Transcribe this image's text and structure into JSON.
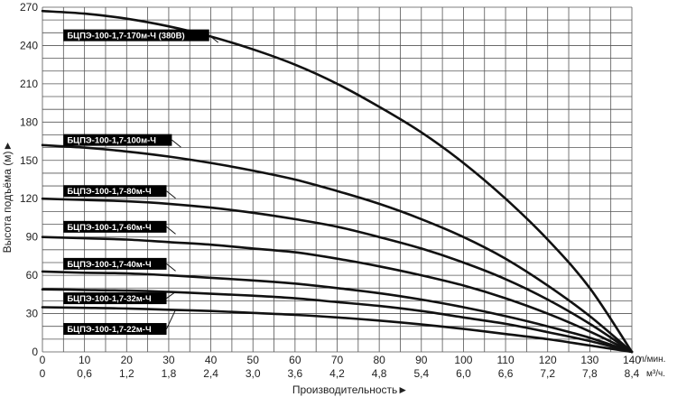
{
  "chart_data": {
    "type": "line",
    "title": "",
    "ylabel": "Высота подъёма (м)",
    "ylabel_arrow": "►",
    "xlabel": "Производительность",
    "xlabel_arrow": "►",
    "x_unit_primary": "л/мин.",
    "x_unit_secondary": "м³/ч.",
    "xlim": [
      0,
      140
    ],
    "ylim": [
      0,
      270
    ],
    "grid": true,
    "x_ticks_lpm": [
      "0",
      "10",
      "20",
      "30",
      "40",
      "50",
      "60",
      "70",
      "80",
      "90",
      "100",
      "110",
      "120",
      "130",
      "140"
    ],
    "x_ticks_m3h": [
      "0",
      "0,6",
      "1,2",
      "1,8",
      "2,4",
      "3,0",
      "3,6",
      "4,2",
      "4,8",
      "5,4",
      "6,0",
      "6,6",
      "7,2",
      "7,8",
      "8,4"
    ],
    "y_ticks": [
      "0",
      "30",
      "60",
      "90",
      "120",
      "150",
      "180",
      "210",
      "240",
      "270"
    ],
    "series": [
      {
        "name": "БЦПЭ-100-1,7-170м-Ч (380В)",
        "label_x": 5,
        "label_y": 248,
        "x": [
          0,
          10,
          20,
          30,
          40,
          50,
          60,
          70,
          80,
          90,
          100,
          110,
          120,
          130,
          140
        ],
        "y": [
          267,
          265,
          261,
          255,
          247,
          237,
          225,
          210,
          192,
          172,
          148,
          120,
          88,
          50,
          0
        ]
      },
      {
        "name": "БЦПЭ-100-1,7-100м-Ч",
        "label_x": 5,
        "label_y": 166,
        "x": [
          0,
          10,
          20,
          30,
          40,
          50,
          60,
          70,
          80,
          90,
          100,
          110,
          120,
          130,
          140
        ],
        "y": [
          162,
          160,
          157,
          153,
          148,
          142,
          135,
          126,
          116,
          104,
          90,
          73,
          52,
          28,
          0
        ]
      },
      {
        "name": "БЦПЭ-100-1,7-80м-Ч",
        "label_x": 5,
        "label_y": 126,
        "x": [
          0,
          10,
          20,
          30,
          40,
          50,
          60,
          70,
          80,
          90,
          100,
          110,
          120,
          130,
          140
        ],
        "y": [
          120,
          119,
          118,
          116,
          113,
          109,
          104,
          98,
          90,
          81,
          70,
          57,
          41,
          22,
          0
        ]
      },
      {
        "name": "БЦПЭ-100-1,7-60м-Ч",
        "label_x": 5,
        "label_y": 98,
        "x": [
          0,
          10,
          20,
          30,
          40,
          50,
          60,
          70,
          80,
          90,
          100,
          110,
          120,
          130,
          140
        ],
        "y": [
          90,
          89,
          88,
          86,
          84,
          81,
          78,
          73,
          67,
          60,
          52,
          42,
          30,
          16,
          0
        ]
      },
      {
        "name": "БЦПЭ-100-1,7-40м-Ч",
        "label_x": 5,
        "label_y": 69,
        "x": [
          0,
          10,
          20,
          30,
          40,
          50,
          60,
          70,
          80,
          90,
          100,
          110,
          120,
          130,
          140
        ],
        "y": [
          63,
          62,
          61.5,
          60,
          58,
          56,
          53.5,
          50,
          46,
          41,
          35,
          28,
          20,
          11,
          0
        ]
      },
      {
        "name": "БЦПЭ-100-1,7-32м-Ч",
        "label_x": 5,
        "label_y": 42,
        "x": [
          0,
          10,
          20,
          30,
          40,
          50,
          60,
          70,
          80,
          90,
          100,
          110,
          120,
          130,
          140
        ],
        "y": [
          49,
          48.5,
          48,
          47,
          45.5,
          44,
          42,
          39,
          36,
          32,
          27,
          22,
          15.5,
          8.5,
          0
        ]
      },
      {
        "name": "БЦПЭ-100-1,7-22м-Ч",
        "label_x": 5,
        "label_y": 18,
        "x": [
          0,
          10,
          20,
          30,
          40,
          50,
          60,
          70,
          80,
          90,
          100,
          110,
          120,
          130,
          140
        ],
        "y": [
          35,
          34.5,
          34,
          33,
          32,
          30.5,
          29,
          27,
          24.5,
          21.5,
          18,
          14,
          10,
          5,
          0
        ]
      }
    ]
  }
}
